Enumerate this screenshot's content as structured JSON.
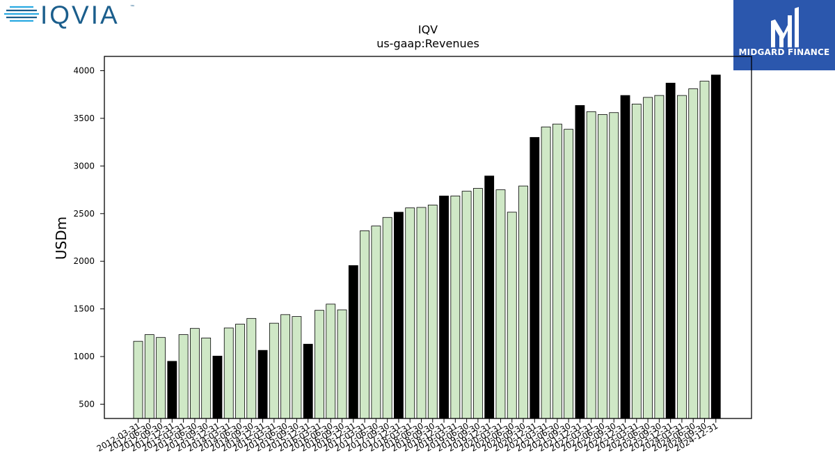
{
  "logos": {
    "left_text": "IQVIA",
    "right_text": "MIDGARD FINANCE"
  },
  "colors": {
    "bar_regular": "#cfe8c6",
    "bar_highlight": "#000000",
    "iqvia_light": "#28a9e1",
    "iqvia_dark": "#1b5e8c",
    "midgard_bg": "#2b57ad"
  },
  "chart_data": {
    "type": "bar",
    "title": "IQV",
    "subtitle": "us-gaap:Revenues",
    "xlabel": "",
    "ylabel": "USDm",
    "ylim": [
      350,
      4150
    ],
    "yticks": [
      500,
      1000,
      1500,
      2000,
      2500,
      3000,
      3500,
      4000
    ],
    "grid": false,
    "legend": "none",
    "categories": [
      "2012-03-31",
      "2012-06-30",
      "2012-09-30",
      "2012-12-31",
      "2013-03-31",
      "2013-06-30",
      "2013-09-30",
      "2013-12-31",
      "2014-03-31",
      "2014-06-30",
      "2014-09-30",
      "2014-12-31",
      "2015-03-31",
      "2015-06-30",
      "2015-09-30",
      "2015-12-31",
      "2016-03-31",
      "2016-06-30",
      "2016-09-30",
      "2016-12-31",
      "2017-03-31",
      "2017-06-30",
      "2017-09-30",
      "2017-12-31",
      "2018-03-31",
      "2018-06-30",
      "2018-09-30",
      "2018-12-31",
      "2019-03-31",
      "2019-06-30",
      "2019-09-30",
      "2019-12-31",
      "2020-03-31",
      "2020-06-30",
      "2020-09-30",
      "2020-12-31",
      "2021-03-31",
      "2021-06-30",
      "2021-09-30",
      "2021-12-31",
      "2022-03-31",
      "2022-06-30",
      "2022-09-30",
      "2022-12-31",
      "2023-03-31",
      "2023-06-30",
      "2023-09-30",
      "2023-12-31",
      "2024-03-31",
      "2024-06-30",
      "2024-09-30",
      "2024-12-31"
    ],
    "values": [
      1160,
      1230,
      1200,
      950,
      1230,
      1295,
      1195,
      1005,
      1300,
      1340,
      1400,
      1065,
      1350,
      1440,
      1420,
      1130,
      1485,
      1550,
      1490,
      1955,
      2320,
      2370,
      2460,
      2515,
      2560,
      2565,
      2590,
      2685,
      2685,
      2735,
      2765,
      2895,
      2750,
      2515,
      2790,
      3300,
      3410,
      3440,
      3385,
      3635,
      3570,
      3540,
      3560,
      3740,
      3650,
      3720,
      3740,
      3870,
      3740,
      3810,
      3890,
      3955
    ],
    "highlight_indices": [
      3,
      7,
      11,
      15,
      19,
      23,
      27,
      31,
      35,
      39,
      43,
      47,
      51
    ]
  }
}
